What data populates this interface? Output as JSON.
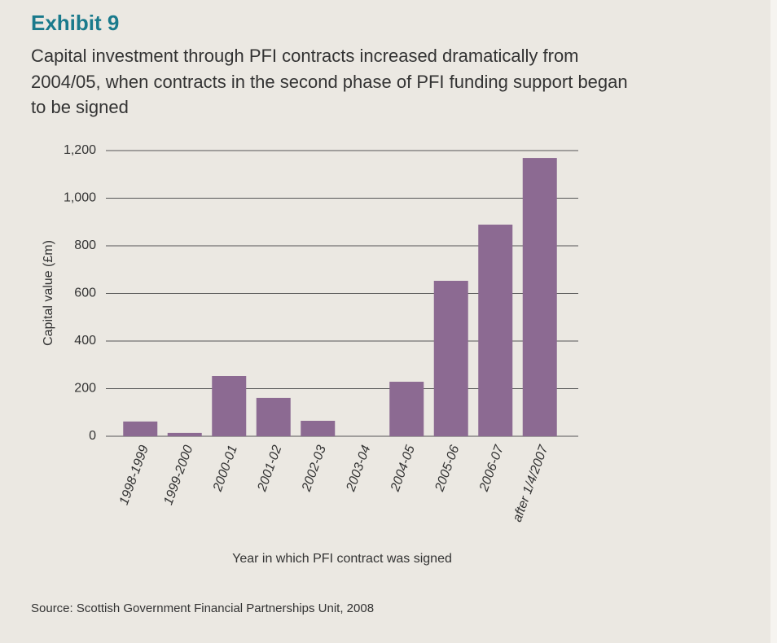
{
  "chart_data": {
    "type": "bar",
    "title": "Exhibit 9",
    "subtitle": [
      "Capital investment through PFI contracts increased dramatically from",
      "2004/05, when contracts in the second phase of PFI funding support began",
      "to be signed"
    ],
    "y_label": "Capital value (£m)",
    "x_label": "Year in which PFI contract was signed",
    "source": "Source: Scottish Government Financial Partnerships Unit, 2008",
    "categories": [
      "1998-1999",
      "1999-2000",
      "2000-01",
      "2001-02",
      "2002-03",
      "2003-04",
      "2004-05",
      "2005-06",
      "2006-07",
      "after 1/4/2007"
    ],
    "values": [
      62,
      14,
      253,
      161,
      65,
      0,
      229,
      653,
      889,
      1169
    ],
    "color": "#8c6a92",
    "ylim": [
      0,
      1200
    ],
    "yticks": [
      0,
      200,
      400,
      600,
      800,
      {
        "value": 1000,
        "label": "1,000"
      },
      {
        "value": 1200,
        "label": "1,200"
      }
    ],
    "grid": true
  }
}
